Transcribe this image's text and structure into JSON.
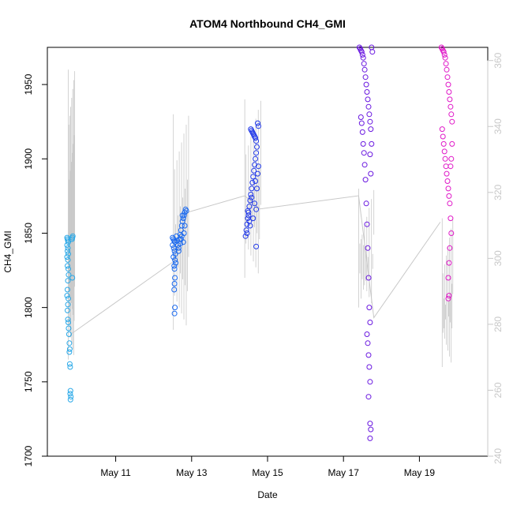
{
  "chart_data": {
    "type": "scatter",
    "title": "ATOM4 Northbound CH4_GMI",
    "xlabel": "Date",
    "ylabel": "CH4_GMI",
    "ylim": [
      1700,
      1975
    ],
    "y2lim": [
      240,
      364
    ],
    "x_ticks": [
      {
        "day": 11,
        "label": "May 11"
      },
      {
        "day": 13,
        "label": "May 13"
      },
      {
        "day": 15,
        "label": "May 15"
      },
      {
        "day": 17,
        "label": "May 17"
      },
      {
        "day": 19,
        "label": "May 19"
      }
    ],
    "y_ticks": [
      1700,
      1750,
      1800,
      1850,
      1900,
      1950
    ],
    "y2_ticks": [
      240,
      260,
      280,
      300,
      320,
      340,
      360
    ],
    "y2_axis_color": "#c8c8c8",
    "secondary_line_color": "#c8c8c8",
    "grid": false,
    "series": [
      {
        "color": "#28a8e8",
        "points": [
          [
            9.72,
            1847
          ],
          [
            9.73,
            1846
          ],
          [
            9.74,
            1845
          ],
          [
            9.75,
            1844
          ],
          [
            9.72,
            1842
          ],
          [
            9.74,
            1840
          ],
          [
            9.73,
            1838
          ],
          [
            9.75,
            1836
          ],
          [
            9.72,
            1834
          ],
          [
            9.74,
            1832
          ],
          [
            9.73,
            1828
          ],
          [
            9.75,
            1826
          ],
          [
            9.76,
            1822
          ],
          [
            9.74,
            1818
          ],
          [
            9.73,
            1812
          ],
          [
            9.72,
            1808
          ],
          [
            9.75,
            1806
          ],
          [
            9.74,
            1802
          ],
          [
            9.73,
            1798
          ],
          [
            9.74,
            1792
          ],
          [
            9.75,
            1790
          ],
          [
            9.76,
            1786
          ],
          [
            9.77,
            1782
          ],
          [
            9.78,
            1776
          ],
          [
            9.79,
            1772
          ],
          [
            9.78,
            1770
          ],
          [
            9.79,
            1762
          ],
          [
            9.8,
            1760
          ],
          [
            9.81,
            1744
          ],
          [
            9.8,
            1742
          ],
          [
            9.82,
            1740
          ],
          [
            9.81,
            1738
          ],
          [
            9.85,
            1846
          ],
          [
            9.86,
            1847
          ],
          [
            9.87,
            1848
          ],
          [
            9.86,
            1820
          ]
        ]
      },
      {
        "color": "#1868f0",
        "points": [
          [
            12.5,
            1847
          ],
          [
            12.52,
            1846
          ],
          [
            12.54,
            1845
          ],
          [
            12.56,
            1844
          ],
          [
            12.5,
            1842
          ],
          [
            12.53,
            1840
          ],
          [
            12.55,
            1838
          ],
          [
            12.57,
            1836
          ],
          [
            12.52,
            1834
          ],
          [
            12.56,
            1832
          ],
          [
            12.58,
            1830
          ],
          [
            12.54,
            1828
          ],
          [
            12.55,
            1826
          ],
          [
            12.56,
            1820
          ],
          [
            12.55,
            1816
          ],
          [
            12.54,
            1812
          ],
          [
            12.56,
            1800
          ],
          [
            12.55,
            1796
          ],
          [
            12.6,
            1848
          ],
          [
            12.62,
            1845
          ],
          [
            12.64,
            1842
          ],
          [
            12.66,
            1840
          ],
          [
            12.68,
            1846
          ],
          [
            12.7,
            1849
          ],
          [
            12.72,
            1852
          ],
          [
            12.74,
            1855
          ],
          [
            12.76,
            1858
          ],
          [
            12.78,
            1860
          ],
          [
            12.8,
            1862
          ],
          [
            12.82,
            1864
          ],
          [
            12.84,
            1866
          ],
          [
            12.8,
            1850
          ],
          [
            12.78,
            1844
          ],
          [
            12.82,
            1855
          ],
          [
            12.86,
            1865
          ],
          [
            12.74,
            1848
          ],
          [
            12.7,
            1843
          ],
          [
            12.66,
            1838
          ],
          [
            12.76,
            1862
          ],
          [
            12.72,
            1846
          ]
        ]
      },
      {
        "color": "#2038e8",
        "points": [
          [
            14.42,
            1848
          ],
          [
            14.44,
            1852
          ],
          [
            14.46,
            1856
          ],
          [
            14.48,
            1860
          ],
          [
            14.5,
            1864
          ],
          [
            14.52,
            1868
          ],
          [
            14.54,
            1872
          ],
          [
            14.56,
            1876
          ],
          [
            14.58,
            1880
          ],
          [
            14.6,
            1884
          ],
          [
            14.62,
            1888
          ],
          [
            14.64,
            1892
          ],
          [
            14.66,
            1896
          ],
          [
            14.68,
            1900
          ],
          [
            14.7,
            1904
          ],
          [
            14.72,
            1908
          ],
          [
            14.56,
            1920
          ],
          [
            14.58,
            1919
          ],
          [
            14.6,
            1918
          ],
          [
            14.62,
            1917
          ],
          [
            14.64,
            1916
          ],
          [
            14.66,
            1915
          ],
          [
            14.68,
            1914
          ],
          [
            14.7,
            1912
          ],
          [
            14.74,
            1924
          ],
          [
            14.76,
            1922
          ],
          [
            14.5,
            1862
          ],
          [
            14.52,
            1858
          ],
          [
            14.66,
            1870
          ],
          [
            14.7,
            1866
          ],
          [
            14.72,
            1880
          ],
          [
            14.74,
            1890
          ],
          [
            14.76,
            1895
          ],
          [
            14.62,
            1860
          ],
          [
            14.58,
            1874
          ],
          [
            14.54,
            1855
          ],
          [
            14.46,
            1850
          ],
          [
            14.48,
            1865
          ],
          [
            14.68,
            1885
          ],
          [
            14.7,
            1841
          ]
        ]
      },
      {
        "color": "#6a18e0",
        "points": [
          [
            17.42,
            1975
          ],
          [
            17.44,
            1974
          ],
          [
            17.46,
            1973
          ],
          [
            17.48,
            1972
          ],
          [
            17.5,
            1970
          ],
          [
            17.52,
            1968
          ],
          [
            17.54,
            1964
          ],
          [
            17.56,
            1960
          ],
          [
            17.58,
            1955
          ],
          [
            17.6,
            1950
          ],
          [
            17.62,
            1945
          ],
          [
            17.64,
            1940
          ],
          [
            17.66,
            1935
          ],
          [
            17.68,
            1930
          ],
          [
            17.7,
            1925
          ],
          [
            17.72,
            1920
          ],
          [
            17.74,
            1910
          ],
          [
            17.46,
            1928
          ],
          [
            17.48,
            1924
          ],
          [
            17.5,
            1918
          ],
          [
            17.52,
            1910
          ],
          [
            17.54,
            1904
          ],
          [
            17.56,
            1896
          ],
          [
            17.58,
            1886
          ],
          [
            17.6,
            1870
          ],
          [
            17.62,
            1856
          ],
          [
            17.64,
            1840
          ],
          [
            17.66,
            1820
          ],
          [
            17.68,
            1800
          ],
          [
            17.7,
            1790
          ],
          [
            17.62,
            1782
          ],
          [
            17.64,
            1776
          ],
          [
            17.66,
            1768
          ],
          [
            17.68,
            1760
          ],
          [
            17.7,
            1750
          ],
          [
            17.66,
            1740
          ],
          [
            17.7,
            1722
          ],
          [
            17.72,
            1718
          ],
          [
            17.7,
            1712
          ],
          [
            17.74,
            1975
          ],
          [
            17.76,
            1972
          ],
          [
            17.7,
            1903
          ],
          [
            17.72,
            1890
          ]
        ]
      },
      {
        "color": "#e018c8",
        "points": [
          [
            19.58,
            1975
          ],
          [
            19.6,
            1974
          ],
          [
            19.62,
            1973
          ],
          [
            19.64,
            1972
          ],
          [
            19.66,
            1970
          ],
          [
            19.68,
            1968
          ],
          [
            19.7,
            1964
          ],
          [
            19.72,
            1960
          ],
          [
            19.74,
            1955
          ],
          [
            19.76,
            1950
          ],
          [
            19.78,
            1945
          ],
          [
            19.8,
            1940
          ],
          [
            19.82,
            1935
          ],
          [
            19.84,
            1930
          ],
          [
            19.86,
            1925
          ],
          [
            19.6,
            1920
          ],
          [
            19.62,
            1915
          ],
          [
            19.64,
            1910
          ],
          [
            19.66,
            1905
          ],
          [
            19.68,
            1900
          ],
          [
            19.7,
            1895
          ],
          [
            19.72,
            1890
          ],
          [
            19.74,
            1885
          ],
          [
            19.76,
            1880
          ],
          [
            19.78,
            1875
          ],
          [
            19.8,
            1870
          ],
          [
            19.82,
            1860
          ],
          [
            19.84,
            1850
          ],
          [
            19.8,
            1840
          ],
          [
            19.78,
            1830
          ],
          [
            19.76,
            1820
          ],
          [
            19.78,
            1808
          ],
          [
            19.76,
            1806
          ],
          [
            19.82,
            1895
          ],
          [
            19.84,
            1900
          ],
          [
            19.86,
            1910
          ]
        ]
      }
    ],
    "secondary_series": [
      [
        9.78,
        276
      ],
      [
        9.82,
        277
      ],
      [
        12.52,
        299
      ],
      [
        12.9,
        314
      ],
      [
        14.4,
        319
      ],
      [
        14.8,
        315
      ],
      [
        17.4,
        319
      ],
      [
        17.8,
        282
      ],
      [
        19.55,
        311
      ]
    ]
  }
}
